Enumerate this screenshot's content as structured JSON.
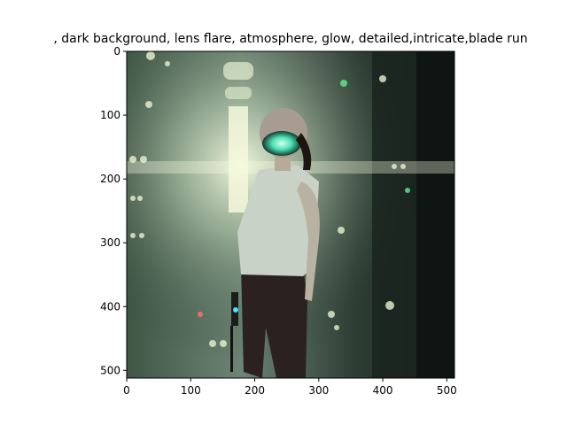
{
  "figure": {
    "title": ",  dark background, lens flare, atmosphere, glow, detailed,intricate,blade run",
    "image_subject": "person in helmet with glowing visor standing in dark sci-fi server corridor",
    "palette": {
      "background": "#2a3a30",
      "glow": "#f2f7d6",
      "visor": "#4fe0b4",
      "shirt": "#c9d2c6",
      "pants": "#2b2220"
    }
  },
  "axes": {
    "x_ticks": [
      "0",
      "100",
      "200",
      "300",
      "400",
      "500"
    ],
    "y_ticks": [
      "0",
      "100",
      "200",
      "300",
      "400",
      "500"
    ],
    "x_range": [
      0,
      512
    ],
    "y_range": [
      0,
      512
    ]
  }
}
